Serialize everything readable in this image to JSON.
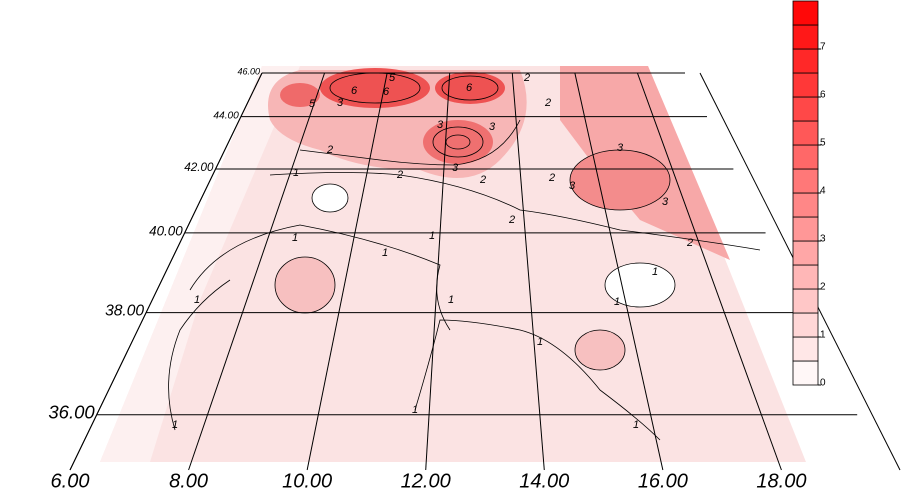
{
  "map": {
    "lon_ticks": [
      {
        "value": 6,
        "label": "6.00"
      },
      {
        "value": 8,
        "label": "8.00"
      },
      {
        "value": 10,
        "label": "10.00"
      },
      {
        "value": 12,
        "label": "12.00"
      },
      {
        "value": 14,
        "label": "14.00"
      },
      {
        "value": 16,
        "label": "16.00"
      },
      {
        "value": 18,
        "label": "18.00"
      }
    ],
    "lat_ticks": [
      {
        "value": 36,
        "label": "36.00"
      },
      {
        "value": 38,
        "label": "38.00"
      },
      {
        "value": 40,
        "label": "40.00"
      },
      {
        "value": 42,
        "label": "42.00"
      },
      {
        "value": 44,
        "label": "44.00"
      },
      {
        "value": 46,
        "label": "46.00"
      }
    ],
    "lonlim": [
      6,
      20
    ],
    "latlim": [
      36,
      46
    ],
    "colorbar": {
      "lim": [
        0,
        8
      ],
      "ticks": [
        0,
        1,
        2,
        3,
        4,
        5,
        6,
        7
      ],
      "low_color": "#ffffff",
      "high_color": "#ff0000"
    },
    "contour_labels": [
      "1",
      "1",
      "1",
      "1",
      "1",
      "1",
      "1",
      "1",
      "1",
      "1",
      "1",
      "1",
      "2",
      "2",
      "2",
      "2",
      "2",
      "2",
      "2",
      "2",
      "3",
      "3",
      "3",
      "3",
      "3",
      "3",
      "3",
      "6",
      "6",
      "6",
      "5",
      "5"
    ]
  }
}
